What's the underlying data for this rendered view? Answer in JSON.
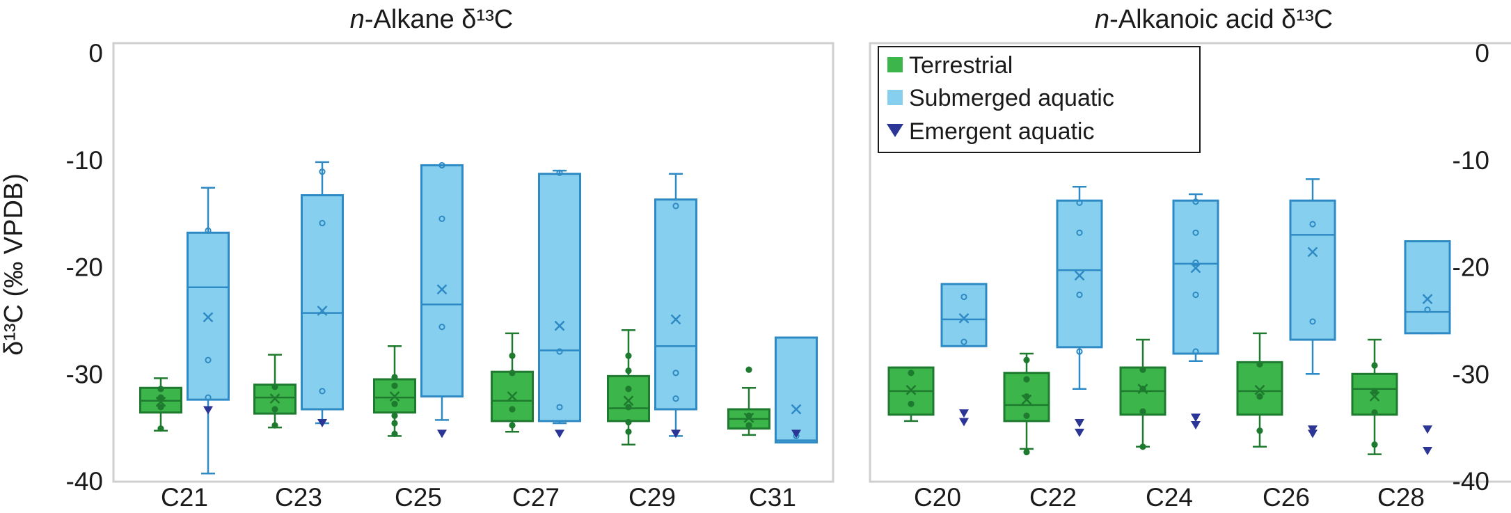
{
  "colors": {
    "terrestrial_fill": "#3cb54a",
    "terrestrial_stroke": "#1e7a2e",
    "submerged_fill": "#87cfee",
    "submerged_stroke": "#2e8ac4",
    "emergent": "#2b3595",
    "frame": "#cfcfcf"
  },
  "legend": {
    "placement": "top-left of right panel",
    "items": [
      {
        "key": "terrestrial",
        "label": "Terrestrial",
        "icon": "green-square-icon"
      },
      {
        "key": "submerged",
        "label": "Submerged aquatic",
        "icon": "blue-square-icon"
      },
      {
        "key": "emergent",
        "label": "Emergent aquatic",
        "icon": "navy-triangle-icon"
      }
    ]
  },
  "chart_data": [
    {
      "type": "box",
      "title": "n-Alkane δ¹³C",
      "title_prefix": "n",
      "title_rest": "-Alkane δ¹³C",
      "ylabel": "δ¹³C (‰ VPDB)",
      "ylim": [
        -40,
        0
      ],
      "yticks": [
        "0",
        "-10",
        "-20",
        "-30",
        "-40"
      ],
      "ytick_values": [
        0,
        -10,
        -20,
        -30,
        -40
      ],
      "grid": false,
      "categories": [
        "C21",
        "C23",
        "C25",
        "C27",
        "C29",
        "C31"
      ],
      "series": [
        {
          "key": "terrestrial",
          "name": "Terrestrial",
          "boxes": [
            {
              "min": -35.3,
              "q1": -33.6,
              "median": -32.5,
              "q3": -31.3,
              "max": -30.4,
              "mean": -32.6,
              "points": [
                -31.4,
                -32.2,
                -33.1,
                -35.1
              ]
            },
            {
              "min": -35.0,
              "q1": -33.7,
              "median": -32.2,
              "q3": -31.0,
              "max": -28.2,
              "mean": -32.3,
              "points": [
                -31.2,
                -33.3,
                -34.8
              ]
            },
            {
              "min": -35.8,
              "q1": -33.6,
              "median": -32.2,
              "q3": -30.5,
              "max": -27.4,
              "mean": -32.1,
              "points": [
                -30.3,
                -31.1,
                -32.8,
                -33.9,
                -34.6,
                -35.6
              ]
            },
            {
              "min": -35.4,
              "q1": -34.4,
              "median": -32.5,
              "q3": -29.8,
              "max": -26.2,
              "mean": -32.1,
              "points": [
                -28.3,
                -29.9,
                -33.3,
                -34.8
              ]
            },
            {
              "min": -36.6,
              "q1": -34.4,
              "median": -33.2,
              "q3": -30.2,
              "max": -25.9,
              "mean": -32.5,
              "points": [
                -28.3,
                -29.7,
                -31.4,
                -33.1,
                -34.5,
                -35.4
              ]
            },
            {
              "min": -35.7,
              "q1": -35.1,
              "median": -34.2,
              "q3": -33.3,
              "max": -31.3,
              "mean": -34.1,
              "points": [
                -29.6,
                -33.9,
                -34.8
              ]
            }
          ]
        },
        {
          "key": "submerged",
          "name": "Submerged aquatic",
          "boxes": [
            {
              "min": -39.3,
              "q1": -32.4,
              "median": -21.9,
              "q3": -16.8,
              "max": -12.6,
              "mean": -24.7,
              "points": [
                -16.6,
                -28.7,
                -32.2
              ]
            },
            {
              "min": -34.6,
              "q1": -33.3,
              "median": -24.3,
              "q3": -13.3,
              "max": -10.2,
              "mean": -24.1,
              "points": [
                -11.1,
                -15.9,
                -31.6
              ]
            },
            {
              "min": -34.3,
              "q1": -32.1,
              "median": -23.5,
              "q3": -10.5,
              "max": -10.5,
              "mean": -22.1,
              "points": [
                -10.5,
                -15.5,
                -25.6
              ]
            },
            {
              "min": -34.6,
              "q1": -34.4,
              "median": -27.8,
              "q3": -11.3,
              "max": -11.0,
              "mean": -25.5,
              "points": [
                -11.2,
                -27.9,
                -33.1
              ]
            },
            {
              "min": -35.8,
              "q1": -33.3,
              "median": -27.4,
              "q3": -13.7,
              "max": -11.3,
              "mean": -24.9,
              "points": [
                -14.3,
                -29.9,
                -32.3
              ]
            },
            {
              "min": -36.4,
              "q1": -36.4,
              "median": -36.2,
              "q3": -26.6,
              "max": -26.6,
              "mean": -33.3,
              "points": [
                -35.8
              ]
            }
          ]
        },
        {
          "key": "emergent",
          "name": "Emergent aquatic",
          "points": [
            [
              -33.4
            ],
            [
              -34.6
            ],
            [
              -35.6
            ],
            [
              -35.6
            ],
            [
              -35.6
            ],
            [
              -35.6
            ]
          ]
        }
      ]
    },
    {
      "type": "box",
      "title": "n-Alkanoic acid δ¹³C",
      "title_prefix": "n",
      "title_rest": "-Alkanoic acid δ¹³C",
      "ylim": [
        -40,
        0
      ],
      "yticks": [
        "0",
        "-10",
        "-20",
        "-30",
        "-40"
      ],
      "ytick_values": [
        0,
        -10,
        -20,
        -30,
        -40
      ],
      "grid": false,
      "categories": [
        "C20",
        "C22",
        "C24",
        "C26",
        "C28"
      ],
      "series": [
        {
          "key": "terrestrial",
          "name": "Terrestrial",
          "boxes": [
            {
              "min": -34.4,
              "q1": -33.8,
              "median": -31.6,
              "q3": -29.4,
              "max": -29.4,
              "mean": -31.5,
              "points": [
                -29.9,
                -32.8
              ]
            },
            {
              "min": -37.0,
              "q1": -34.4,
              "median": -32.9,
              "q3": -29.9,
              "max": -28.1,
              "mean": -32.4,
              "points": [
                -28.7,
                -30.5,
                -32.1,
                -33.9,
                -37.3
              ]
            },
            {
              "min": -36.8,
              "q1": -33.8,
              "median": -31.6,
              "q3": -29.4,
              "max": -26.8,
              "mean": -31.4,
              "points": [
                -29.6,
                -31.4,
                -33.5,
                -36.8
              ]
            },
            {
              "min": -36.8,
              "q1": -33.8,
              "median": -31.6,
              "q3": -28.9,
              "max": -26.2,
              "mean": -31.5,
              "points": [
                -29.1,
                -32.1,
                -35.3
              ]
            },
            {
              "min": -37.5,
              "q1": -33.8,
              "median": -31.4,
              "q3": -30.0,
              "max": -26.8,
              "mean": -32.1,
              "points": [
                -29.2,
                -31.6,
                -33.6,
                -36.6
              ]
            }
          ]
        },
        {
          "key": "submerged",
          "name": "Submerged aquatic",
          "boxes": [
            {
              "min": -27.4,
              "q1": -27.4,
              "median": -24.9,
              "q3": -21.6,
              "max": -21.6,
              "mean": -24.8,
              "points": [
                -22.8,
                -27.0
              ]
            },
            {
              "min": -31.4,
              "q1": -27.5,
              "median": -20.3,
              "q3": -13.8,
              "max": -12.5,
              "mean": -20.8,
              "points": [
                -14.0,
                -16.8,
                -22.6,
                -27.9
              ]
            },
            {
              "min": -28.8,
              "q1": -28.1,
              "median": -19.7,
              "q3": -13.8,
              "max": -13.2,
              "mean": -20.1,
              "points": [
                -13.9,
                -16.8,
                -19.6,
                -22.6,
                -27.9
              ]
            },
            {
              "min": -30.0,
              "q1": -26.8,
              "median": -17.0,
              "q3": -13.8,
              "max": -11.8,
              "mean": -18.6,
              "points": [
                -16.0,
                -25.1
              ]
            },
            {
              "min": -26.2,
              "q1": -26.2,
              "median": -24.2,
              "q3": -17.6,
              "max": -17.6,
              "mean": -23.0,
              "points": [
                -24.0
              ]
            }
          ]
        },
        {
          "key": "emergent",
          "name": "Emergent aquatic",
          "points": [
            [
              -33.7,
              -34.5
            ],
            [
              -34.6,
              -35.5
            ],
            [
              -34.1,
              -34.8
            ],
            [
              -35.2,
              -35.6
            ],
            [
              -35.2,
              -37.2
            ]
          ]
        }
      ]
    }
  ]
}
